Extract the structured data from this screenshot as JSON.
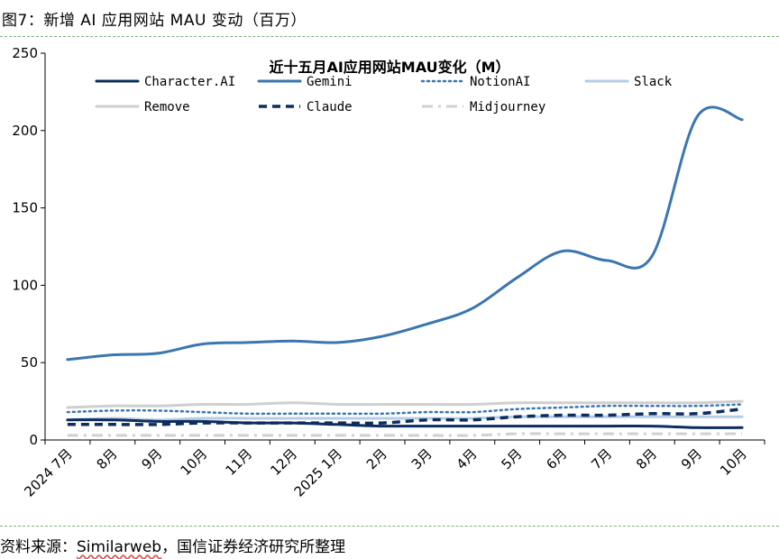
{
  "figure": {
    "caption": "图7：新增 AI 应用网站 MAU 变动（百万）",
    "source_prefix": "资料来源：",
    "source_name": "Similarweb",
    "source_suffix": "，国信证券经济研究所整理"
  },
  "chart_data": {
    "type": "line",
    "title": "近十五月AI应用网站MAU变化（M）",
    "xlabel": "",
    "ylabel": "",
    "ylim": [
      0,
      250
    ],
    "yticks": [
      0,
      50,
      100,
      150,
      200,
      250
    ],
    "grid": false,
    "legend_position": "top",
    "categories": [
      "2024 7月",
      "8月",
      "9月",
      "10月",
      "11月",
      "12月",
      "2025 1月",
      "2月",
      "3月",
      "4月",
      "5月",
      "6月",
      "7月",
      "8月",
      "9月",
      "10月"
    ],
    "series": [
      {
        "name": "Character.AI",
        "color": "#0d2d5e",
        "style": "solid",
        "values": [
          13,
          13,
          12,
          12,
          11,
          11,
          10,
          9,
          9,
          9,
          9,
          9,
          9,
          9,
          8,
          8
        ]
      },
      {
        "name": "Gemini",
        "color": "#3a76b0",
        "style": "solid",
        "values": [
          52,
          55,
          56,
          62,
          63,
          64,
          63,
          67,
          75,
          85,
          105,
          122,
          116,
          119,
          209,
          207
        ]
      },
      {
        "name": "NotionAI",
        "color": "#3a76b0",
        "style": "dotted",
        "values": [
          18,
          19,
          19,
          18,
          17,
          17,
          17,
          17,
          18,
          18,
          20,
          21,
          22,
          22,
          22,
          23
        ]
      },
      {
        "name": "Slack",
        "color": "#b5cde4",
        "style": "solid",
        "values": [
          13,
          14,
          13,
          14,
          14,
          14,
          14,
          14,
          14,
          14,
          15,
          15,
          15,
          15,
          15,
          15
        ]
      },
      {
        "name": "Remove",
        "color": "#cfcfcf",
        "style": "solid",
        "values": [
          21,
          22,
          22,
          23,
          23,
          24,
          23,
          23,
          23,
          23,
          24,
          24,
          24,
          24,
          24,
          25
        ]
      },
      {
        "name": "Claude",
        "color": "#0d2d5e",
        "style": "dashed",
        "values": [
          10,
          10,
          10,
          11,
          11,
          11,
          11,
          11,
          13,
          13,
          15,
          16,
          16,
          17,
          17,
          20
        ]
      },
      {
        "name": "Midjourney",
        "color": "#d0d0d0",
        "style": "dashdot",
        "values": [
          3,
          3,
          3,
          3,
          3,
          3,
          3,
          3,
          3,
          3,
          4,
          4,
          4,
          4,
          4,
          4
        ]
      }
    ]
  }
}
